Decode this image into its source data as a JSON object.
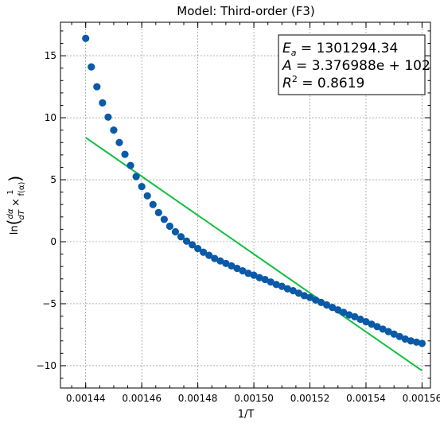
{
  "chart_data": {
    "type": "scatter",
    "title": "Model: Third-order (F3)",
    "xlabel": "1/T",
    "ylabel": "ln(dα/dT × 1/f(α))",
    "xlim": [
      0.001431,
      0.001563
    ],
    "ylim": [
      -11.8,
      17.7
    ],
    "xticks": [
      0.00144,
      0.00146,
      0.00148,
      0.0015,
      0.00152,
      0.00154,
      0.00156
    ],
    "xtick_labels": [
      "0.00144",
      "0.00146",
      "0.00148",
      "0.00150",
      "0.00152",
      "0.00154",
      "0.00156"
    ],
    "yticks": [
      -10,
      -5,
      0,
      5,
      10,
      15
    ],
    "ytick_labels": [
      "−10",
      "−5",
      "0",
      "5",
      "10",
      "15"
    ],
    "grid": true,
    "annotation": {
      "Ea": "1301294.34",
      "A": "3.376988e + 102",
      "R2": "0.8619"
    },
    "series": [
      {
        "kind": "scatter",
        "color": "#0a5aa8",
        "x": [
          0.00144,
          0.001442,
          0.001444,
          0.001446,
          0.001448,
          0.00145,
          0.001452,
          0.001454,
          0.001456,
          0.001458,
          0.00146,
          0.001462,
          0.001464,
          0.001466,
          0.001468,
          0.00147,
          0.001472,
          0.001474,
          0.001476,
          0.001478,
          0.00148,
          0.001482,
          0.001484,
          0.001486,
          0.001488,
          0.00149,
          0.001492,
          0.001494,
          0.001496,
          0.001498,
          0.0015,
          0.001502,
          0.001504,
          0.001506,
          0.001508,
          0.00151,
          0.001512,
          0.001514,
          0.001516,
          0.001518,
          0.00152,
          0.001522,
          0.001524,
          0.001526,
          0.001528,
          0.00153,
          0.001532,
          0.001534,
          0.001536,
          0.001538,
          0.00154,
          0.001542,
          0.001544,
          0.001546,
          0.001548,
          0.00155,
          0.001552,
          0.001554,
          0.001556,
          0.001558,
          0.00156
        ],
        "y": [
          16.4,
          14.1,
          12.5,
          11.2,
          10.05,
          9.0,
          8.0,
          7.05,
          6.15,
          5.25,
          4.45,
          3.7,
          3.0,
          2.35,
          1.8,
          1.25,
          0.8,
          0.4,
          0.05,
          -0.25,
          -0.55,
          -0.85,
          -1.1,
          -1.35,
          -1.55,
          -1.75,
          -1.95,
          -2.15,
          -2.35,
          -2.55,
          -2.7,
          -2.9,
          -3.05,
          -3.25,
          -3.45,
          -3.6,
          -3.8,
          -3.95,
          -4.15,
          -4.35,
          -4.5,
          -4.7,
          -4.9,
          -5.1,
          -5.3,
          -5.5,
          -5.7,
          -5.9,
          -6.05,
          -6.25,
          -6.45,
          -6.65,
          -6.85,
          -7.05,
          -7.25,
          -7.45,
          -7.65,
          -7.85,
          -8.0,
          -8.1,
          -8.2
        ]
      },
      {
        "kind": "line",
        "color": "#10c040",
        "x": [
          0.00144,
          0.00156
        ],
        "y": [
          8.4,
          -10.4
        ]
      }
    ]
  }
}
